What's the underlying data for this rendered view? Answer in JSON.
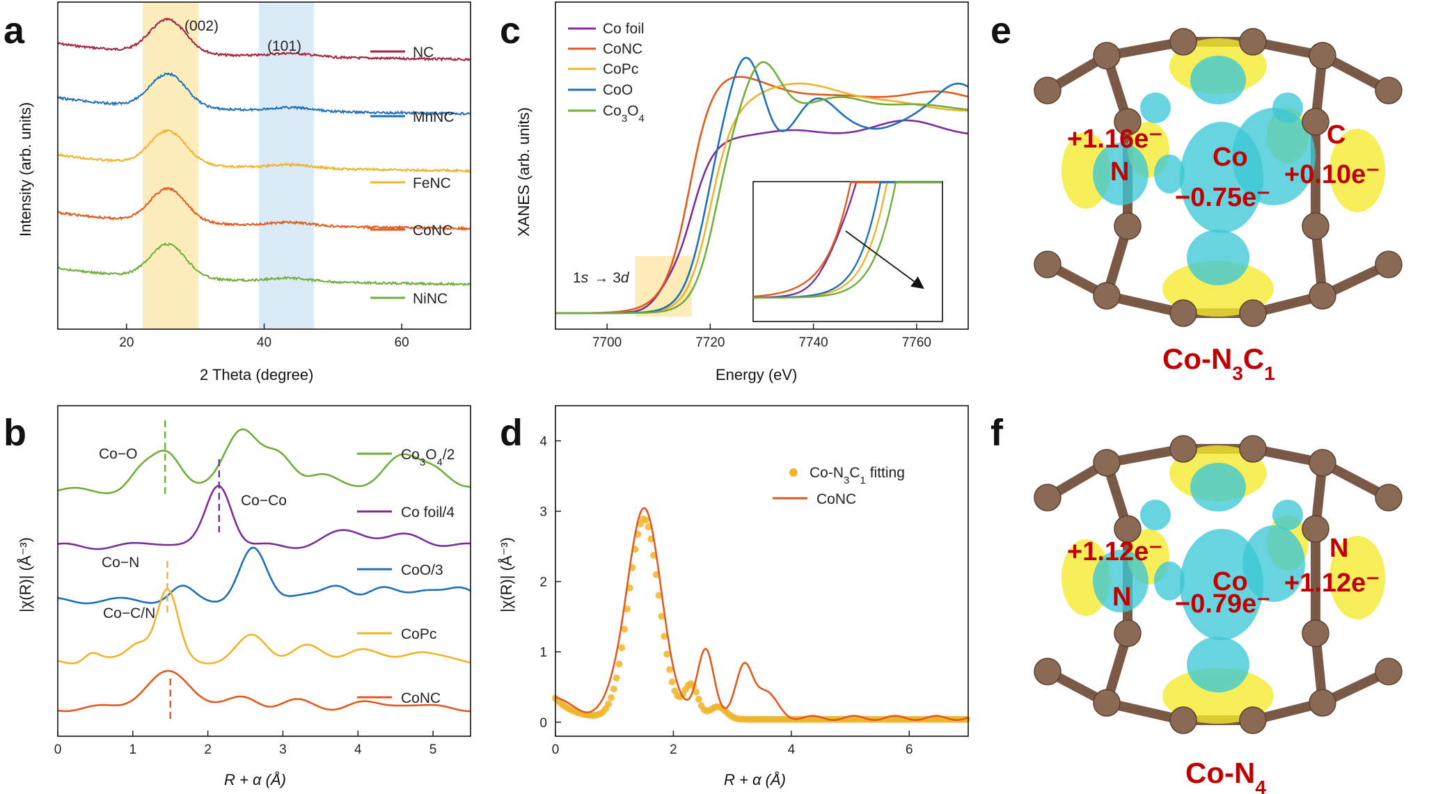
{
  "chart_data": [
    {
      "panel": "a",
      "type": "line",
      "xlabel": "2 Theta (degree)",
      "ylabel": "Intensity (arb. units)",
      "xlim": [
        10,
        70
      ],
      "xticks": [
        "20",
        "40",
        "60"
      ],
      "peak_labels": [
        "(002)",
        "(101)"
      ],
      "highlight_bands": [
        {
          "x": [
            22.5,
            30.5
          ],
          "color": "#fde9b0"
        },
        {
          "x": [
            39.5,
            47.5
          ],
          "color": "#d5e6f6"
        }
      ],
      "series": [
        {
          "name": "NC",
          "color": "#a3213a",
          "offset": 4.0
        },
        {
          "name": "MnNC",
          "color": "#1f6fb8",
          "offset": 3.0
        },
        {
          "name": "FeNC",
          "color": "#f0b42a",
          "offset": 2.0
        },
        {
          "name": "CoNC",
          "color": "#e05a1e",
          "offset": 1.0
        },
        {
          "name": "NiNC",
          "color": "#6fae3a",
          "offset": 0.0
        }
      ]
    },
    {
      "panel": "b",
      "type": "line",
      "xlabel": "R + α (Å)",
      "ylabel": "|χ(R)| (Å⁻³)",
      "xlim": [
        0,
        5.5
      ],
      "xticks": [
        "0",
        "1",
        "2",
        "3",
        "4",
        "5"
      ],
      "series": [
        {
          "name": "Co3O4/2",
          "legend_base": "Co",
          "legend_sub1": "3",
          "legend_mid": "O",
          "legend_sub2": "4",
          "legend_tail": "/2",
          "color": "#6fae3a",
          "dash_x": 1.43
        },
        {
          "name": "Co foil/4",
          "color": "#7b2d9a",
          "dash_x": 2.15
        },
        {
          "name": "CoO/3",
          "color": "#1f6fb8"
        },
        {
          "name": "CoPc",
          "color": "#f0b42a",
          "dash_x": 1.46
        },
        {
          "name": "CoNC",
          "color": "#e05a1e",
          "dash_x": 1.5
        }
      ],
      "annotations": [
        "Co−O",
        "Co−Co",
        "Co−N",
        "Co−C/N"
      ]
    },
    {
      "panel": "c",
      "type": "line",
      "xlabel": "Energy (eV)",
      "ylabel": "XANES (arb. units)",
      "xlim": [
        7690,
        7770
      ],
      "xticks": [
        "7700",
        "7720",
        "7740",
        "7760"
      ],
      "series": [
        {
          "name": "Co foil",
          "color": "#7b2d9a",
          "edge": 7712
        },
        {
          "name": "CoNC",
          "color": "#e05a1e",
          "edge": 7716,
          "peak": 7723
        },
        {
          "name": "CoPc",
          "color": "#f0b42a",
          "edge": 7719,
          "peak": 7737
        },
        {
          "name": "CoO",
          "color": "#1f6fb8",
          "edge": 7718,
          "peak": 7727
        },
        {
          "name": "Co3O4",
          "legend_base": "Co",
          "legend_sub1": "3",
          "legend_mid": "O",
          "legend_sub2": "4",
          "color": "#6fae3a",
          "edge": 7720,
          "peak": 7730
        }
      ],
      "annotation": {
        "prefix": "1",
        "s": "s",
        "arrow": "→",
        "three": "3",
        "d": "d"
      }
    },
    {
      "panel": "d",
      "type": "line",
      "xlabel": "R + α (Å)",
      "ylabel": "|χ(R)| (Å⁻³)",
      "xlim": [
        0,
        7
      ],
      "ylim": [
        -0.2,
        4.5
      ],
      "xticks": [
        "0",
        "2",
        "4",
        "6"
      ],
      "yticks": [
        "0",
        "1",
        "2",
        "3",
        "4"
      ],
      "series": [
        {
          "name": "Co-N3C1 fitting",
          "legend_base": "Co-N",
          "legend_sub1": "3",
          "legend_mid": "C",
          "legend_sub2": "1",
          "legend_tail": " fitting",
          "color": "#f0b42a",
          "style": "scatter"
        },
        {
          "name": "CoNC",
          "color": "#e05a1e",
          "style": "line",
          "peak": 2.95,
          "peak_x": 1.5
        }
      ]
    }
  ],
  "panel_labels": {
    "a": "a",
    "b": "b",
    "c": "c",
    "d": "d",
    "e": "e",
    "f": "f"
  },
  "structures": {
    "e": {
      "title_base": "Co-N",
      "title_sub1": "3",
      "title_mid": "C",
      "title_sub2": "1",
      "atoms": [
        "N",
        "Co",
        "C"
      ],
      "charges": [
        "+1.16e⁻",
        "−0.75e⁻",
        "+0.10e⁻"
      ]
    },
    "f": {
      "title_base": "Co-N",
      "title_sub1": "4",
      "atoms": [
        "N",
        "Co",
        "N"
      ],
      "charges": [
        "+1.12e⁻",
        "−0.79e⁻",
        "+1.12e⁻"
      ]
    }
  },
  "colors": {
    "atom": "#8a6a55",
    "bond": "#7a5a46",
    "isosurface_cyan": "#3cc8d6",
    "isosurface_yellow": "#f3ea2a",
    "label_red": "#c00000"
  }
}
